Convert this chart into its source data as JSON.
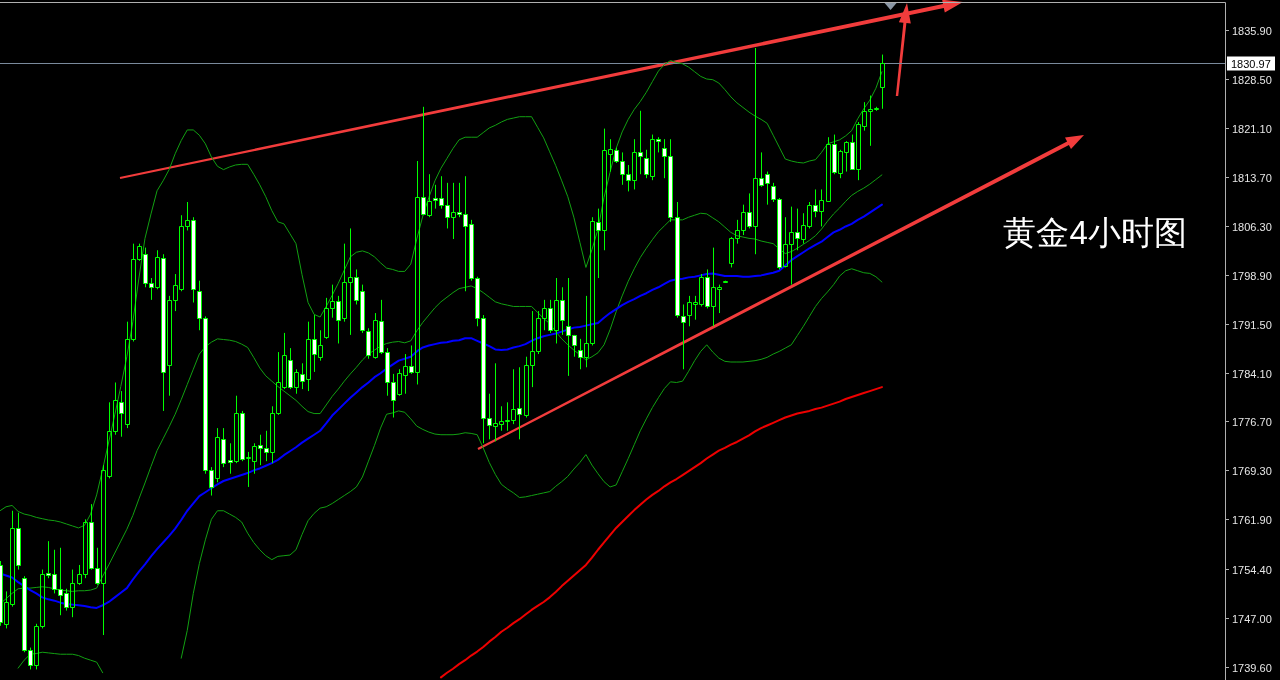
{
  "chart_data": {
    "type": "candlestick",
    "title": "黄金4小时图",
    "categories": [
      null,
      null,
      null,
      null,
      null,
      null,
      null,
      null,
      null,
      null,
      null,
      null,
      null,
      null,
      null,
      null,
      null,
      null,
      null,
      null,
      null,
      null,
      null,
      null,
      null,
      null,
      null,
      null,
      null,
      null,
      null,
      null,
      null,
      null,
      null,
      null,
      null,
      null,
      null,
      null,
      null,
      null,
      null,
      null,
      null,
      null,
      null,
      null,
      null,
      null,
      null,
      null,
      null,
      null,
      null,
      null,
      null,
      null,
      null,
      null,
      null,
      null,
      null,
      null,
      null,
      null,
      null,
      null,
      null,
      null,
      null,
      null,
      null,
      null,
      null,
      null,
      null,
      null,
      null,
      null,
      null,
      null,
      null,
      null,
      null,
      null,
      null,
      null,
      null,
      null,
      null,
      null,
      null,
      null,
      null,
      null,
      null,
      null,
      null,
      null,
      null,
      null,
      null,
      null,
      null,
      null,
      null,
      null,
      null,
      null,
      null,
      null,
      null,
      null,
      null,
      null,
      null,
      null,
      null,
      null,
      null,
      null,
      null,
      null,
      null,
      null,
      null,
      null,
      null,
      null,
      null,
      null,
      null,
      null,
      null,
      null,
      null,
      null,
      null,
      null,
      null,
      null,
      null,
      null,
      null,
      null,
      null
    ],
    "ohlc": [
      [
        1755.0,
        1755.6,
        1745.8,
        1746.4
      ],
      [
        1746.1,
        1751.0,
        1745.4,
        1749.4
      ],
      [
        1749.1,
        1763.2,
        1748.7,
        1760.6
      ],
      [
        1760.6,
        1762.9,
        1754.3,
        1755.0
      ],
      [
        1753.0,
        1753.3,
        1741.8,
        1742.1
      ],
      [
        1742.1,
        1742.5,
        1739.2,
        1739.8
      ],
      [
        1739.8,
        1746.1,
        1739.2,
        1745.8
      ],
      [
        1745.8,
        1754.3,
        1745.4,
        1753.7
      ],
      [
        1753.8,
        1758.6,
        1753.0,
        1753.5
      ],
      [
        1753.7,
        1757.3,
        1750.7,
        1751.4
      ],
      [
        1751.4,
        1757.6,
        1747.4,
        1750.5
      ],
      [
        1750.7,
        1751.4,
        1748.1,
        1748.7
      ],
      [
        1748.7,
        1754.3,
        1747.1,
        1752.3
      ],
      [
        1752.3,
        1755.0,
        1752.0,
        1753.7
      ],
      [
        1753.7,
        1761.9,
        1753.0,
        1761.5
      ],
      [
        1761.5,
        1764.2,
        1754.3,
        1754.6
      ],
      [
        1754.6,
        1757.6,
        1752.0,
        1752.3
      ],
      [
        1752.3,
        1770.1,
        1744.4,
        1769.4
      ],
      [
        1768.4,
        1779.6,
        1768.1,
        1775.3
      ],
      [
        1775.3,
        1782.6,
        1774.7,
        1780.0
      ],
      [
        1779.6,
        1781.3,
        1774.4,
        1778.0
      ],
      [
        1776.3,
        1791.8,
        1775.7,
        1789.2
      ],
      [
        1789.2,
        1803.6,
        1788.8,
        1801.3
      ],
      [
        1801.3,
        1803.6,
        1801.0,
        1803.3
      ],
      [
        1802.0,
        1803.0,
        1797.0,
        1797.7
      ],
      [
        1797.7,
        1798.4,
        1795.1,
        1797.0
      ],
      [
        1797.0,
        1802.6,
        1796.7,
        1801.6
      ],
      [
        1801.5,
        1802.0,
        1778.3,
        1784.2
      ],
      [
        1785.2,
        1795.7,
        1780.6,
        1795.1
      ],
      [
        1795.1,
        1799.0,
        1793.4,
        1797.4
      ],
      [
        1796.7,
        1807.9,
        1796.4,
        1806.2
      ],
      [
        1806.2,
        1809.9,
        1805.6,
        1807.2
      ],
      [
        1807.2,
        1807.6,
        1794.7,
        1796.7
      ],
      [
        1796.5,
        1798.0,
        1790.5,
        1792.4
      ],
      [
        1792.4,
        1792.6,
        1768.8,
        1769.4
      ],
      [
        1769.4,
        1769.8,
        1765.5,
        1766.8
      ],
      [
        1768.1,
        1775.7,
        1767.5,
        1774.4
      ],
      [
        1774.0,
        1775.7,
        1769.8,
        1770.4
      ],
      [
        1770.9,
        1773.4,
        1768.8,
        1770.6
      ],
      [
        1770.7,
        1780.6,
        1770.4,
        1778.0
      ],
      [
        1778.0,
        1778.3,
        1770.7,
        1771.1
      ],
      [
        1771.2,
        1772.1,
        1766.8,
        1771.4
      ],
      [
        1770.7,
        1773.4,
        1768.8,
        1773.0
      ],
      [
        1773.2,
        1774.7,
        1770.1,
        1772.7
      ],
      [
        1772.7,
        1775.3,
        1770.7,
        1772.1
      ],
      [
        1772.1,
        1779.0,
        1770.4,
        1778.0
      ],
      [
        1778.0,
        1787.2,
        1777.7,
        1782.7
      ],
      [
        1781.9,
        1790.1,
        1781.6,
        1786.7
      ],
      [
        1786.0,
        1787.8,
        1781.6,
        1781.9
      ],
      [
        1781.9,
        1784.6,
        1780.9,
        1784.2
      ],
      [
        1783.9,
        1785.5,
        1781.6,
        1782.9
      ],
      [
        1783.2,
        1791.8,
        1781.3,
        1789.2
      ],
      [
        1789.2,
        1792.8,
        1784.2,
        1786.9
      ],
      [
        1786.5,
        1790.5,
        1785.9,
        1788.3
      ],
      [
        1789.5,
        1795.4,
        1789.2,
        1793.9
      ],
      [
        1793.9,
        1797.4,
        1792.4,
        1794.9
      ],
      [
        1794.9,
        1795.7,
        1788.5,
        1792.1
      ],
      [
        1792.4,
        1803.6,
        1791.8,
        1797.8
      ],
      [
        1797.8,
        1805.9,
        1789.8,
        1798.6
      ],
      [
        1798.6,
        1799.7,
        1794.4,
        1795.1
      ],
      [
        1796.5,
        1797.4,
        1790.1,
        1790.5
      ],
      [
        1790.4,
        1790.8,
        1786.2,
        1786.7
      ],
      [
        1786.5,
        1793.1,
        1786.2,
        1792.1
      ],
      [
        1791.9,
        1795.1,
        1786.9,
        1787.2
      ],
      [
        1787.2,
        1787.8,
        1780.6,
        1782.6
      ],
      [
        1782.7,
        1783.9,
        1777.3,
        1780.0
      ],
      [
        1780.9,
        1784.6,
        1780.6,
        1784.0
      ],
      [
        1783.8,
        1786.9,
        1780.9,
        1785.1
      ],
      [
        1785.1,
        1788.2,
        1783.9,
        1784.2
      ],
      [
        1784.2,
        1816.1,
        1782.3,
        1810.7
      ],
      [
        1810.7,
        1824.3,
        1807.9,
        1808.1
      ],
      [
        1807.9,
        1814.1,
        1807.6,
        1810.1
      ],
      [
        1810.5,
        1812.5,
        1808.9,
        1810.2
      ],
      [
        1810.5,
        1813.8,
        1808.9,
        1809.5
      ],
      [
        1809.5,
        1812.8,
        1805.9,
        1807.6
      ],
      [
        1807.6,
        1812.8,
        1804.3,
        1808.4
      ],
      [
        1808.4,
        1812.8,
        1807.6,
        1808.1
      ],
      [
        1808.1,
        1813.8,
        1796.4,
        1806.2
      ],
      [
        1806.6,
        1807.2,
        1798.0,
        1798.4
      ],
      [
        1798.4,
        1798.6,
        1791.1,
        1792.4
      ],
      [
        1792.4,
        1792.8,
        1773.4,
        1777.2
      ],
      [
        1777.2,
        1780.9,
        1774.0,
        1776.1
      ],
      [
        1776.0,
        1785.5,
        1773.7,
        1776.5
      ],
      [
        1776.3,
        1779.0,
        1775.3,
        1776.8
      ],
      [
        1776.7,
        1779.6,
        1775.3,
        1777.0
      ],
      [
        1777.0,
        1784.6,
        1776.3,
        1778.6
      ],
      [
        1778.8,
        1784.9,
        1774.0,
        1777.8
      ],
      [
        1777.7,
        1786.5,
        1777.3,
        1785.2
      ],
      [
        1785.2,
        1793.4,
        1781.9,
        1787.3
      ],
      [
        1787.3,
        1793.4,
        1786.9,
        1792.4
      ],
      [
        1792.4,
        1795.1,
        1790.5,
        1793.9
      ],
      [
        1793.9,
        1795.1,
        1790.1,
        1790.5
      ],
      [
        1790.5,
        1798.4,
        1788.5,
        1795.1
      ],
      [
        1795.1,
        1797.0,
        1789.8,
        1792.1
      ],
      [
        1791.1,
        1798.4,
        1783.6,
        1789.8
      ],
      [
        1789.8,
        1789.8,
        1786.5,
        1788.2
      ],
      [
        1787.5,
        1789.2,
        1784.6,
        1786.4
      ],
      [
        1786.5,
        1795.7,
        1784.9,
        1788.5
      ],
      [
        1788.5,
        1807.6,
        1788.2,
        1807.0
      ],
      [
        1806.9,
        1808.9,
        1798.4,
        1805.6
      ],
      [
        1805.6,
        1821.0,
        1802.6,
        1817.8
      ],
      [
        1817.1,
        1819.4,
        1814.5,
        1817.9
      ],
      [
        1817.8,
        1818.1,
        1815.8,
        1816.1
      ],
      [
        1816.1,
        1817.4,
        1812.5,
        1814.1
      ],
      [
        1814.1,
        1815.5,
        1811.5,
        1813.2
      ],
      [
        1813.2,
        1819.4,
        1811.8,
        1817.4
      ],
      [
        1817.4,
        1823.7,
        1814.1,
        1816.8
      ],
      [
        1816.6,
        1817.8,
        1813.5,
        1814.1
      ],
      [
        1813.8,
        1820.1,
        1813.2,
        1819.4
      ],
      [
        1819.4,
        1819.7,
        1817.4,
        1819.1
      ],
      [
        1818.1,
        1819.4,
        1813.5,
        1816.8
      ],
      [
        1816.8,
        1819.4,
        1806.9,
        1807.6
      ],
      [
        1807.6,
        1809.9,
        1792.4,
        1792.8
      ],
      [
        1792.6,
        1794.4,
        1784.6,
        1791.7
      ],
      [
        1792.8,
        1795.7,
        1791.1,
        1794.7
      ],
      [
        1794.5,
        1795.7,
        1792.1,
        1794.7
      ],
      [
        1794.4,
        1799.0,
        1794.1,
        1798.6
      ],
      [
        1798.6,
        1799.7,
        1793.8,
        1794.1
      ],
      [
        1794.1,
        1803.0,
        1791.1,
        1797.0
      ],
      [
        1796.8,
        1797.4,
        1793.1,
        1797.0
      ],
      [
        1797.9,
        1798.0,
        1797.8,
        1798.0
      ],
      [
        1800.7,
        1804.6,
        1800.0,
        1804.4
      ],
      [
        1804.4,
        1807.2,
        1803.6,
        1805.6
      ],
      [
        1805.6,
        1809.5,
        1804.9,
        1808.4
      ],
      [
        1808.4,
        1811.2,
        1805.9,
        1806.2
      ],
      [
        1806.2,
        1833.2,
        1802.0,
        1813.6
      ],
      [
        1813.6,
        1817.4,
        1812.2,
        1812.5
      ],
      [
        1814.1,
        1814.5,
        1809.5,
        1812.8
      ],
      [
        1812.3,
        1812.8,
        1809.9,
        1810.3
      ],
      [
        1810.3,
        1810.5,
        1799.7,
        1800.0
      ],
      [
        1800.2,
        1807.6,
        1800.0,
        1803.5
      ],
      [
        1803.5,
        1809.2,
        1797.4,
        1805.3
      ],
      [
        1805.3,
        1808.9,
        1802.6,
        1804.4
      ],
      [
        1804.3,
        1808.2,
        1803.6,
        1806.4
      ],
      [
        1806.2,
        1809.9,
        1805.9,
        1809.5
      ],
      [
        1809.5,
        1811.8,
        1807.6,
        1808.6
      ],
      [
        1808.6,
        1811.8,
        1806.2,
        1810.2
      ],
      [
        1810.1,
        1819.7,
        1809.9,
        1818.7
      ],
      [
        1818.7,
        1820.1,
        1814.1,
        1814.5
      ],
      [
        1814.3,
        1817.8,
        1813.5,
        1817.6
      ],
      [
        1817.4,
        1819.1,
        1814.5,
        1818.9
      ],
      [
        1818.9,
        1820.1,
        1814.8,
        1814.9
      ],
      [
        1814.9,
        1822.0,
        1813.2,
        1821.7
      ],
      [
        1821.4,
        1825.0,
        1820.7,
        1823.7
      ],
      [
        1823.7,
        1826.0,
        1818.4,
        1823.9
      ],
      [
        1823.9,
        1824.3,
        1823.7,
        1824.1
      ],
      [
        1827.3,
        1832.2,
        1824.0,
        1830.97
      ]
    ],
    "color": "#00ff00",
    "colors": [
      "#ffffff",
      "#00ff00",
      "#00ff00",
      "#ffffff",
      "#ffffff",
      "#ffffff",
      "#00ff00",
      "#00ff00",
      "#ffffff",
      "#ffffff",
      "#ffffff",
      "#ffffff",
      "#00ff00",
      "#00ff00",
      "#00ff00",
      "#ffffff",
      "#ffffff",
      "#00ff00",
      "#00ff00",
      "#00ff00",
      "#ffffff",
      "#00ff00",
      "#00ff00",
      "#00ff00",
      "#ffffff",
      "#ffffff",
      "#00ff00",
      "#ffffff",
      "#00ff00",
      "#00ff00",
      "#00ff00",
      "#00ff00",
      "#ffffff",
      "#ffffff",
      "#ffffff",
      "#ffffff",
      "#00ff00",
      "#ffffff",
      "#ffffff",
      "#00ff00",
      "#ffffff",
      "#00ff00",
      "#00ff00",
      "#ffffff",
      "#ffffff",
      "#00ff00",
      "#00ff00",
      "#00ff00",
      "#ffffff",
      "#00ff00",
      "#ffffff",
      "#00ff00",
      "#ffffff",
      "#00ff00",
      "#00ff00",
      "#00ff00",
      "#ffffff",
      "#00ff00",
      "#00ff00",
      "#ffffff",
      "#ffffff",
      "#ffffff",
      "#00ff00",
      "#ffffff",
      "#ffffff",
      "#ffffff",
      "#00ff00",
      "#00ff00",
      "#ffffff",
      "#00ff00",
      "#ffffff",
      "#00ff00",
      "#ffffff",
      "#ffffff",
      "#ffffff",
      "#00ff00",
      "#ffffff",
      "#ffffff",
      "#ffffff",
      "#ffffff",
      "#ffffff",
      "#ffffff",
      "#00ff00",
      "#00ff00",
      "#00ff00",
      "#00ff00",
      "#ffffff",
      "#00ff00",
      "#00ff00",
      "#00ff00",
      "#00ff00",
      "#ffffff",
      "#00ff00",
      "#ffffff",
      "#ffffff",
      "#ffffff",
      "#ffffff",
      "#00ff00",
      "#00ff00",
      "#ffffff",
      "#00ff00",
      "#00ff00",
      "#ffffff",
      "#ffffff",
      "#ffffff",
      "#00ff00",
      "#ffffff",
      "#ffffff",
      "#00ff00",
      "#ffffff",
      "#ffffff",
      "#ffffff",
      "#ffffff",
      "#ffffff",
      "#00ff00",
      "#00ff00",
      "#00ff00",
      "#ffffff",
      "#00ff00",
      "#00ff00",
      "#00ff00",
      "#00ff00",
      "#00ff00",
      "#00ff00",
      "#ffffff",
      "#00ff00",
      "#ffffff",
      "#ffffff",
      "#ffffff",
      "#ffffff",
      "#00ff00",
      "#00ff00",
      "#ffffff",
      "#00ff00",
      "#00ff00",
      "#ffffff",
      "#00ff00",
      "#00ff00",
      "#ffffff",
      "#00ff00",
      "#00ff00",
      "#ffffff",
      "#00ff00",
      "#00ff00",
      "#00ff00",
      "#00ff00",
      "#00ff00"
    ],
    "series": [
      {
        "type": "line",
        "color": "#12a012",
        "values": [
          1763.2,
          1763.8,
          1764.0,
          1763.1,
          1762.7,
          1762.5,
          1762.2,
          1762.0,
          1761.8,
          1761.7,
          1761.5,
          1761.2,
          1760.9,
          1760.6,
          1761.0,
          1762.7,
          1765.6,
          1769.5,
          1773.6,
          1777.7,
          1782.0,
          1786.5,
          1791.8,
          1798.4,
          1804.4,
          1808.1,
          1811.6,
          1813.1,
          1814.8,
          1817.2,
          1819.2,
          1820.8,
          1820.8,
          1820.0,
          1818.7,
          1816.7,
          1815.3,
          1814.8,
          1815.2,
          1815.5,
          1815.6,
          1815.6,
          1814.1,
          1812.5,
          1810.7,
          1808.6,
          1806.9,
          1806.6,
          1805.1,
          1803.6,
          1798.9,
          1794.7,
          1792.9,
          1792.5,
          1794.1,
          1795.8,
          1797.6,
          1799.6,
          1801.6,
          1802.3,
          1802.5,
          1802.2,
          1801.6,
          1800.7,
          1799.9,
          1799.7,
          1799.4,
          1799.4,
          1800.5,
          1804.3,
          1807.8,
          1810.6,
          1813.1,
          1815.0,
          1816.5,
          1818.0,
          1819.3,
          1819.7,
          1819.7,
          1819.7,
          1820.4,
          1821.1,
          1821.5,
          1822.0,
          1822.4,
          1822.6,
          1822.8,
          1822.8,
          1822.8,
          1821.2,
          1819.6,
          1817.5,
          1815.4,
          1813.1,
          1810.7,
          1807.6,
          1803.8,
          1800.0,
          1802.7,
          1805.8,
          1810.6,
          1814.4,
          1818.0,
          1820.5,
          1822.4,
          1823.9,
          1825.1,
          1826.5,
          1828.1,
          1829.7,
          1830.7,
          1831.3,
          1831.0,
          1830.8,
          1830.3,
          1829.6,
          1828.9,
          1828.5,
          1828.4,
          1827.9,
          1826.9,
          1825.8,
          1824.9,
          1824.2,
          1823.5,
          1822.9,
          1822.4,
          1821.8,
          1820.0,
          1818.2,
          1816.4,
          1816.1,
          1815.9,
          1815.8,
          1816.1,
          1816.3,
          1817.4,
          1818.7,
          1819.0,
          1819.3,
          1819.9,
          1820.7,
          1822.5,
          1824.0,
          1825.3,
          1827.1,
          1829.6
        ]
      },
      {
        "type": "line",
        "color": "#12a012",
        "values": [
          1749.1,
          1749.9,
          1750.7,
          1751.4,
          1751.5,
          1751.5,
          1751.6,
          1751.7,
          1751.6,
          1751.4,
          1751.2,
          1751.1,
          1751.0,
          1751.1,
          1751.1,
          1751.2,
          1751.5,
          1753.3,
          1755.0,
          1756.8,
          1758.6,
          1760.4,
          1762.5,
          1765.0,
          1767.4,
          1769.9,
          1772.3,
          1774.1,
          1775.9,
          1777.8,
          1780.0,
          1782.3,
          1784.6,
          1786.9,
          1788.0,
          1788.7,
          1789.2,
          1789.1,
          1789.0,
          1788.8,
          1788.4,
          1787.9,
          1786.4,
          1784.8,
          1783.6,
          1782.8,
          1782.0,
          1781.3,
          1780.6,
          1779.9,
          1779.0,
          1778.2,
          1777.9,
          1777.9,
          1779.2,
          1780.5,
          1781.6,
          1782.8,
          1783.9,
          1784.9,
          1786.0,
          1786.9,
          1787.5,
          1788.1,
          1788.5,
          1788.7,
          1788.8,
          1788.6,
          1788.9,
          1790.4,
          1791.7,
          1792.8,
          1793.9,
          1794.8,
          1795.5,
          1796.2,
          1796.8,
          1797.0,
          1797.2,
          1796.8,
          1796.2,
          1795.5,
          1794.8,
          1794.5,
          1794.3,
          1794.1,
          1794.1,
          1794.1,
          1794.1,
          1793.2,
          1792.3,
          1791.5,
          1790.3,
          1789.2,
          1788.3,
          1787.5,
          1786.8,
          1786.0,
          1786.5,
          1787.1,
          1788.3,
          1790.6,
          1793.3,
          1795.7,
          1797.9,
          1799.8,
          1801.5,
          1802.9,
          1804.2,
          1805.4,
          1806.3,
          1807.2,
          1807.2,
          1807.2,
          1807.6,
          1807.9,
          1808.2,
          1808.1,
          1807.5,
          1806.9,
          1806.1,
          1805.3,
          1804.8,
          1804.6,
          1804.4,
          1804.3,
          1804.0,
          1803.8,
          1803.6,
          1802.8,
          1802.1,
          1802.4,
          1802.9,
          1803.5,
          1804.1,
          1804.8,
          1805.8,
          1807.0,
          1808.1,
          1809.0,
          1810.0,
          1810.9,
          1811.5,
          1812.0,
          1812.6,
          1813.3,
          1814.0
        ]
      },
      {
        "type": "line",
        "color": "#12a012",
        "values": [
          null,
          null,
          null,
          1739.4,
          1740.6,
          1741.5,
          1741.6,
          1741.8,
          1741.7,
          1741.6,
          1741.5,
          1741.5,
          1741.5,
          1741.3,
          1740.9,
          1740.6,
          1740.3,
          1738.7,
          null,
          null,
          null,
          null,
          null,
          null,
          null,
          null,
          null,
          null,
          null,
          null,
          1740.9,
          1745.1,
          1750.7,
          1755.2,
          1758.8,
          1761.9,
          1763.2,
          1763.2,
          1762.7,
          1762.2,
          1761.5,
          1759.8,
          1758.4,
          1757.3,
          1756.4,
          1755.8,
          1756.3,
          1756.4,
          1756.5,
          1757.3,
          1759.6,
          1761.7,
          1762.8,
          1763.6,
          1763.8,
          1764.3,
          1764.9,
          1765.5,
          1766.1,
          1766.8,
          1768.3,
          1770.7,
          1773.1,
          1775.7,
          1777.8,
          1778.0,
          1778.3,
          1778.1,
          1777.1,
          1776.0,
          1775.5,
          1775.1,
          1774.8,
          1774.7,
          1774.7,
          1774.7,
          1774.8,
          1775.0,
          1774.9,
          1774.7,
          1772.7,
          1770.5,
          1768.7,
          1767.2,
          1766.5,
          1765.9,
          1765.2,
          1765.3,
          1765.5,
          1765.7,
          1765.9,
          1766.1,
          1766.9,
          1767.6,
          1768.4,
          1769.5,
          1770.5,
          1771.7,
          1770.1,
          1768.8,
          1767.6,
          1766.8,
          1767.1,
          1769.1,
          1771.1,
          1773.2,
          1775.3,
          1777.1,
          1778.8,
          1780.3,
          1781.7,
          1782.7,
          1782.6,
          1782.8,
          1784.3,
          1785.9,
          1787.3,
          1788.3,
          1787.2,
          1786.3,
          1785.8,
          1785.7,
          1785.7,
          1785.7,
          1785.8,
          1785.9,
          1786.1,
          1786.4,
          1786.9,
          1787.3,
          1787.8,
          1788.3,
          1789.7,
          1791.1,
          1792.6,
          1794.1,
          1795.3,
          1796.3,
          1797.4,
          1798.7,
          1799.5,
          1799.8,
          1799.5,
          1799.2,
          1799.1,
          1798.6,
          1797.8
        ]
      },
      {
        "type": "line",
        "color": "#0000ff",
        "values": [
          1753.7,
          1753.4,
          1753.1,
          1752.4,
          1751.8,
          1751.2,
          1750.7,
          1750.1,
          1749.8,
          1749.6,
          1749.3,
          1749.1,
          1749.0,
          1748.9,
          1748.8,
          1748.6,
          1748.5,
          1748.9,
          1749.4,
          1750.1,
          1750.8,
          1751.5,
          1752.8,
          1754.0,
          1755.1,
          1756.3,
          1757.4,
          1758.4,
          1759.4,
          1760.5,
          1761.8,
          1763.2,
          1764.3,
          1765.4,
          1766.0,
          1766.6,
          1767.2,
          1767.7,
          1768.0,
          1768.3,
          1768.6,
          1768.9,
          1769.3,
          1769.6,
          1770.0,
          1770.4,
          1770.9,
          1771.6,
          1772.2,
          1772.8,
          1773.5,
          1774.1,
          1774.7,
          1775.3,
          1776.4,
          1777.6,
          1778.5,
          1779.4,
          1780.3,
          1781.1,
          1781.9,
          1782.6,
          1783.4,
          1784.0,
          1784.7,
          1785.3,
          1785.9,
          1786.2,
          1786.5,
          1787.3,
          1787.9,
          1788.2,
          1788.4,
          1788.6,
          1788.7,
          1788.9,
          1789.0,
          1789.3,
          1789.3,
          1788.9,
          1788.5,
          1788.1,
          1787.6,
          1787.5,
          1787.6,
          1787.9,
          1788.1,
          1788.4,
          1788.9,
          1789.3,
          1789.6,
          1789.8,
          1790.0,
          1790.3,
          1790.6,
          1790.9,
          1791.0,
          1791.2,
          1791.4,
          1791.6,
          1792.4,
          1793.1,
          1793.7,
          1794.3,
          1794.8,
          1795.2,
          1795.7,
          1796.1,
          1796.6,
          1797.0,
          1797.5,
          1798.0,
          1798.2,
          1798.3,
          1798.5,
          1798.6,
          1798.8,
          1799.0,
          1799.1,
          1798.9,
          1798.7,
          1798.7,
          1798.7,
          1798.6,
          1798.6,
          1798.7,
          1798.8,
          1799.0,
          1799.2,
          1799.5,
          1800.3,
          1801.1,
          1801.7,
          1802.3,
          1802.9,
          1803.4,
          1803.9,
          1804.6,
          1805.3,
          1805.7,
          1806.2,
          1806.6,
          1807.2,
          1807.7,
          1808.3,
          1808.9,
          1809.5
        ]
      },
      {
        "type": "line",
        "color": "#ee0000",
        "values": [
          null,
          null,
          null,
          null,
          null,
          null,
          null,
          null,
          null,
          null,
          null,
          null,
          null,
          null,
          null,
          null,
          null,
          null,
          null,
          null,
          null,
          null,
          null,
          null,
          null,
          null,
          null,
          null,
          null,
          null,
          null,
          null,
          null,
          null,
          null,
          null,
          null,
          null,
          null,
          null,
          null,
          null,
          null,
          null,
          null,
          null,
          null,
          null,
          null,
          null,
          null,
          null,
          null,
          null,
          null,
          null,
          null,
          null,
          null,
          null,
          null,
          null,
          null,
          null,
          null,
          null,
          null,
          null,
          null,
          null,
          null,
          null,
          null,
          1738.0,
          1738.7,
          1739.3,
          1740.0,
          1740.6,
          1741.3,
          1741.9,
          1742.6,
          1743.4,
          1744.1,
          1744.9,
          1745.5,
          1746.2,
          1746.8,
          1747.5,
          1748.2,
          1748.8,
          1749.4,
          1750.1,
          1750.9,
          1751.8,
          1752.6,
          1753.4,
          1754.2,
          1755.0,
          1756.1,
          1757.3,
          1758.4,
          1759.5,
          1760.6,
          1761.5,
          1762.4,
          1763.3,
          1764.1,
          1764.9,
          1765.6,
          1766.2,
          1766.9,
          1767.5,
          1768.0,
          1768.6,
          1769.2,
          1769.8,
          1770.4,
          1771.1,
          1771.7,
          1772.3,
          1772.7,
          1773.2,
          1773.6,
          1774.1,
          1774.6,
          1775.2,
          1775.7,
          1776.1,
          1776.5,
          1776.9,
          1777.3,
          1777.6,
          1777.9,
          1778.1,
          1778.3,
          1778.6,
          1778.8,
          1779.1,
          1779.4,
          1779.7,
          1780.1,
          1780.4,
          1780.7,
          1781.0,
          1781.3,
          1781.6,
          1781.9
        ]
      }
    ],
    "ylim": [
      1737.6,
      1840.0
    ],
    "yticks": [
      {
        "value": 1835.9,
        "label": "1835.90"
      },
      {
        "value": 1828.5,
        "label": "1828.50"
      },
      {
        "value": 1821.1,
        "label": "1821.10"
      },
      {
        "value": 1813.7,
        "label": "1813.70"
      },
      {
        "value": 1806.3,
        "label": "1806.30"
      },
      {
        "value": 1798.9,
        "label": "1798.90"
      },
      {
        "value": 1791.5,
        "label": "1791.50"
      },
      {
        "value": 1784.1,
        "label": "1784.10"
      },
      {
        "value": 1776.7,
        "label": "1776.70"
      },
      {
        "value": 1769.3,
        "label": "1769.30"
      },
      {
        "value": 1761.9,
        "label": "1761.90"
      },
      {
        "value": 1754.4,
        "label": "1754.40"
      },
      {
        "value": 1747.0,
        "label": "1747.00"
      },
      {
        "value": 1739.6,
        "label": "1739.60"
      }
    ],
    "tick_labels": "y",
    "ref_lines": [
      {
        "axis": "y",
        "value": 1830.97,
        "label": "1830.97",
        "color": "#7a8a9c"
      }
    ]
  }
}
